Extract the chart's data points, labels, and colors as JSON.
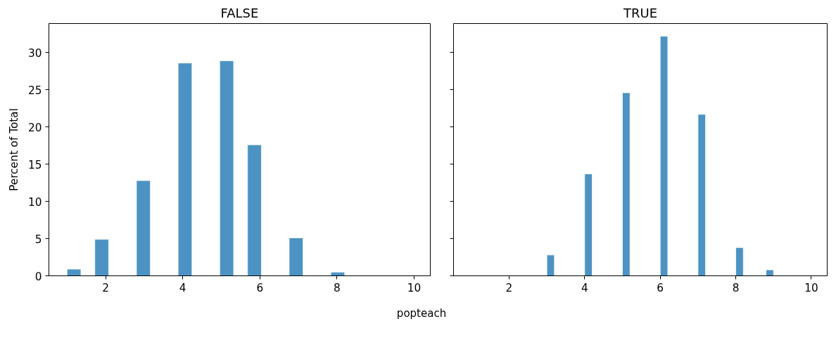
{
  "chart_data": [
    {
      "type": "histogram",
      "title": "FALSE",
      "xlabel": "popteach",
      "ylabel": "Percent of Total",
      "color": "#4c93c3",
      "bins": [
        1,
        1.36,
        1.72,
        2.08,
        2.44,
        2.8,
        3.16,
        3.52,
        3.88,
        4.24,
        4.6,
        4.96,
        5.32,
        5.68,
        6.04,
        6.4,
        6.76,
        7.12,
        7.48,
        7.84,
        8.2,
        8.56,
        8.92,
        9.28,
        9.64,
        10
      ],
      "values": [
        0.9,
        0,
        4.9,
        0,
        0,
        12.8,
        0,
        0,
        28.6,
        0,
        0,
        28.9,
        0,
        17.6,
        0,
        0,
        5.1,
        0,
        0,
        0.5,
        0,
        0,
        0,
        0,
        null
      ],
      "xlim": [
        0.53,
        10.42
      ],
      "xticks": [
        2,
        4,
        6,
        8,
        10
      ],
      "ylim": [
        0,
        33.9
      ],
      "yticks": [
        0,
        5,
        10,
        15,
        20,
        25,
        30
      ]
    },
    {
      "type": "histogram",
      "title": "TRUE",
      "color": "#4c93c3",
      "bins": [
        3,
        3.2,
        3.4,
        3.6,
        3.8,
        4,
        4.2,
        4.4,
        4.6,
        4.8,
        5,
        5.2,
        5.4,
        5.6,
        5.8,
        6,
        6.2,
        6.4,
        6.6,
        6.8,
        7,
        7.2,
        7.4,
        7.6,
        7.8,
        8,
        8.2,
        8.4,
        8.6,
        8.8,
        9
      ],
      "values": [
        2.8,
        0,
        0,
        0,
        0,
        13.7,
        0,
        0,
        0,
        0,
        24.6,
        0,
        0,
        0,
        0,
        32.2,
        0,
        0,
        0,
        0,
        21.7,
        0,
        0,
        0,
        0,
        3.8,
        0,
        0,
        0,
        0.8
      ],
      "xlim": [
        0.53,
        10.42
      ],
      "xticks": [
        2,
        4,
        6,
        8,
        10
      ],
      "ylim": [
        0,
        33.9
      ],
      "yticks": [
        0,
        5,
        10,
        15,
        20,
        25,
        30
      ],
      "tick_labels": "x"
    }
  ]
}
